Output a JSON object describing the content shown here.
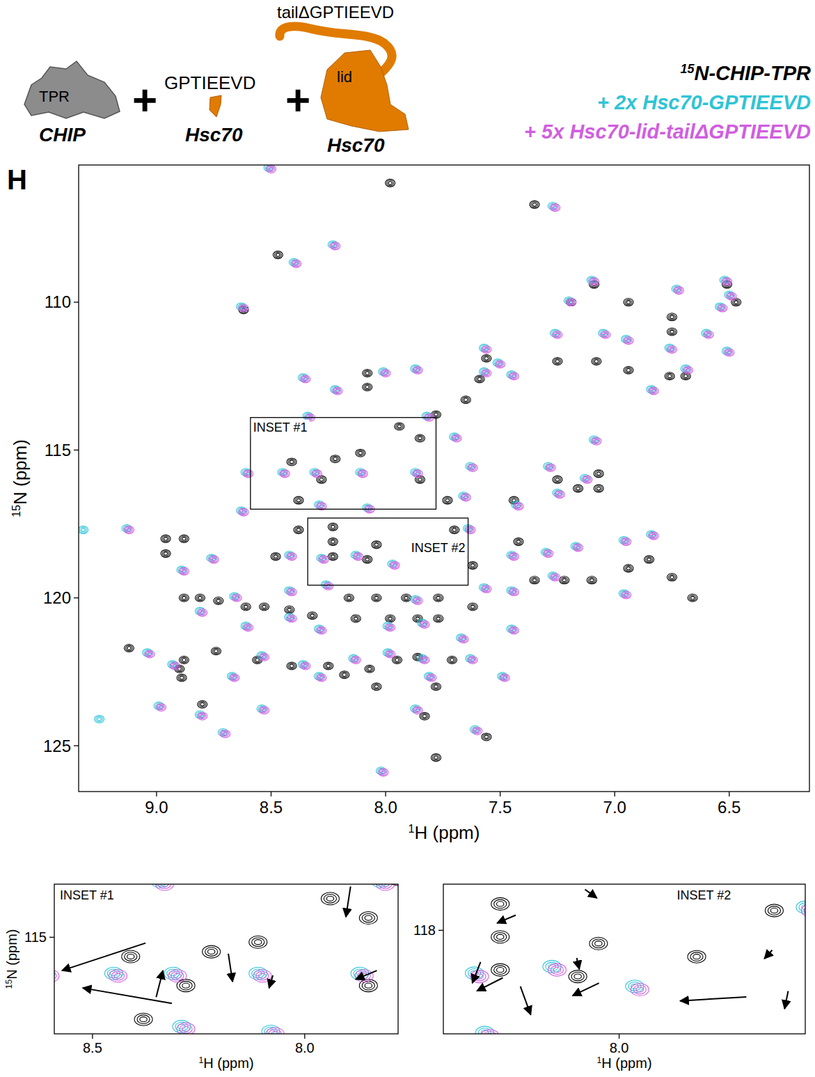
{
  "chart_data": {
    "type": "scatter",
    "panel_label": "H",
    "x_label": "1H (ppm)",
    "y_label": "15N (ppm)",
    "xlim": [
      9.34,
      6.15
    ],
    "ylim": [
      105.36,
      126.55
    ],
    "xticks": [
      {
        "value": 9,
        "label": "9.0"
      },
      {
        "value": 8.5,
        "label": "8.5"
      },
      {
        "value": 8,
        "label": "8.0"
      },
      {
        "value": 7.5,
        "label": "7.5"
      },
      {
        "value": 7,
        "label": "7.0"
      },
      {
        "value": 6.5,
        "label": "6.5"
      }
    ],
    "yticks": [
      110,
      115,
      120,
      125
    ],
    "legend": "top-right",
    "series": [
      {
        "name": "15N-CHIP-TPR",
        "color": "#000000",
        "marker": "contour",
        "x": [
          7.98,
          7.35,
          8.47,
          8.62,
          8.08,
          8.08,
          7.65,
          7.94,
          7.78,
          7.85,
          8.41,
          8.22,
          8.28,
          8.11,
          7.85,
          8.38,
          7.73,
          7.44,
          7.25,
          7.16,
          7.07,
          7.07,
          8.23,
          8.38,
          8.96,
          8.88,
          8.23,
          8.04,
          8.48,
          8.23,
          8.08,
          7.85,
          8.96,
          7.62,
          7.35,
          7.22,
          7.1,
          6.94,
          6.75,
          6.85,
          8.88,
          8.81,
          8.73,
          8.61,
          8.53,
          8.42,
          8.32,
          8.13,
          8.04,
          7.91,
          7.77,
          7.62,
          7.98,
          7.86,
          7.77,
          8.16,
          9.12,
          8.88,
          8.74,
          8.56,
          8.41,
          8.25,
          8.07,
          7.95,
          7.86,
          7.71,
          8.18,
          8.04,
          7.78,
          8.9,
          8.89,
          8.8,
          7.78,
          7.56,
          7.83,
          6.66,
          7.42,
          7.7,
          7.09,
          6.94,
          6.75,
          6.75,
          6.94,
          6.76,
          6.69,
          7.08,
          7.25,
          6.47,
          6.51,
          7.56,
          7.59,
          7.19
        ],
        "values": [
          105.97,
          106.7,
          108.4,
          110.26,
          112.4,
          112.87,
          113.3,
          114.2,
          113.8,
          114.6,
          115.4,
          115.3,
          116.0,
          115.1,
          116.0,
          116.7,
          116.7,
          116.7,
          116.0,
          116.3,
          116.3,
          115.8,
          117.6,
          117.7,
          118.0,
          118.0,
          118.1,
          118.2,
          118.6,
          118.6,
          118.7,
          118.4,
          118.5,
          118.9,
          119.4,
          119.4,
          119.4,
          119.0,
          119.3,
          118.7,
          120.0,
          120.0,
          120.1,
          120.3,
          120.3,
          120.4,
          120.6,
          120.7,
          120.0,
          120.0,
          120.0,
          120.3,
          120.7,
          120.7,
          120.7,
          120.0,
          121.7,
          122.1,
          121.8,
          122.1,
          122.3,
          122.3,
          122.4,
          122.1,
          122.0,
          122.1,
          122.6,
          123.0,
          123.0,
          122.4,
          122.7,
          123.6,
          125.4,
          124.7,
          124.0,
          120.0,
          118.1,
          117.7,
          109.4,
          110.0,
          110.5,
          111.0,
          112.3,
          112.5,
          112.5,
          112.0,
          112.0,
          110.0,
          109.4,
          111.9,
          112.6,
          110.0
        ]
      },
      {
        "name": "+ 2x Hsc70-GPTIEEVD",
        "color": "#2ec4d6",
        "marker": "contour",
        "x": [
          8.51,
          7.27,
          8.4,
          8.23,
          8.63,
          8.36,
          8.34,
          8.22,
          8.01,
          7.87,
          7.45,
          7.57,
          7.82,
          7.7,
          7.09,
          8.61,
          8.45,
          8.31,
          8.11,
          7.87,
          7.63,
          7.29,
          7.25,
          7.13,
          7.66,
          7.43,
          8.63,
          8.29,
          8.08,
          7.64,
          8.42,
          8.28,
          8.13,
          7.97,
          7.45,
          7.3,
          7.17,
          6.96,
          6.84,
          9.13,
          8.89,
          8.76,
          8.66,
          8.42,
          8.26,
          7.87,
          7.57,
          7.45,
          7.27,
          6.96,
          8.81,
          8.61,
          8.42,
          8.29,
          7.99,
          7.84,
          7.67,
          7.45,
          9.04,
          8.93,
          8.54,
          8.36,
          8.14,
          7.99,
          7.84,
          7.63,
          8.67,
          8.29,
          7.81,
          7.49,
          8.99,
          8.54,
          8.81,
          7.87,
          7.61,
          8.71,
          8.02,
          7.2,
          7.1,
          6.95,
          6.76,
          6.52,
          6.54,
          6.5,
          6.73,
          7.26,
          7.05,
          6.84,
          6.69,
          6.51,
          7.57,
          7.51,
          6.6,
          9.25,
          9.32
        ],
        "values": [
          105.45,
          106.75,
          108.65,
          108.05,
          110.15,
          112.55,
          113.85,
          112.95,
          112.35,
          112.25,
          112.45,
          112.35,
          113.85,
          114.55,
          114.65,
          115.75,
          115.75,
          115.75,
          115.75,
          115.75,
          115.55,
          115.55,
          116.45,
          115.95,
          116.55,
          116.85,
          117.05,
          116.85,
          116.95,
          117.65,
          118.55,
          118.65,
          118.55,
          118.85,
          118.55,
          118.45,
          118.25,
          118.05,
          117.85,
          117.65,
          119.05,
          118.65,
          119.95,
          119.75,
          119.55,
          120.05,
          119.65,
          119.75,
          119.25,
          119.85,
          120.45,
          120.95,
          120.65,
          121.05,
          120.95,
          120.85,
          121.35,
          121.05,
          121.85,
          122.25,
          121.95,
          122.25,
          122.05,
          121.85,
          122.05,
          122.05,
          122.65,
          122.65,
          122.65,
          122.65,
          123.65,
          123.75,
          123.95,
          123.75,
          124.45,
          124.55,
          125.85,
          109.95,
          109.25,
          111.25,
          111.55,
          109.25,
          110.15,
          109.75,
          109.55,
          111.05,
          111.05,
          112.95,
          112.25,
          111.65,
          111.55,
          112.05,
          111.05,
          124.1,
          117.7
        ]
      },
      {
        "name": "+ 5x Hsc70-lid-tailΔGPTIEEVD",
        "color": "#d05ee0",
        "marker": "contour",
        "x": [
          8.5,
          7.26,
          8.39,
          8.22,
          8.62,
          8.35,
          8.33,
          8.21,
          8.0,
          7.86,
          7.44,
          7.56,
          7.81,
          7.69,
          7.08,
          8.6,
          8.44,
          8.3,
          8.1,
          7.86,
          7.62,
          7.28,
          7.24,
          7.12,
          7.65,
          7.42,
          8.62,
          8.28,
          8.07,
          7.63,
          8.41,
          8.27,
          8.12,
          7.96,
          7.44,
          7.29,
          7.16,
          6.95,
          6.83,
          9.12,
          8.88,
          8.75,
          8.65,
          8.41,
          8.25,
          7.86,
          7.56,
          7.44,
          7.26,
          6.95,
          8.8,
          8.6,
          8.41,
          8.28,
          7.98,
          7.83,
          7.66,
          7.44,
          9.03,
          8.92,
          8.53,
          8.35,
          8.13,
          7.98,
          7.83,
          7.62,
          8.66,
          8.28,
          7.8,
          7.48,
          8.98,
          8.53,
          8.8,
          7.86,
          7.6,
          8.7,
          8.01,
          7.19,
          7.09,
          6.94,
          6.75,
          6.51,
          6.53,
          6.49,
          6.72,
          7.25,
          7.04,
          6.83,
          6.68,
          6.5,
          7.56,
          7.5,
          6.59
        ],
        "values": [
          105.5,
          106.8,
          108.7,
          108.1,
          110.2,
          112.6,
          113.9,
          113.0,
          112.4,
          112.3,
          112.5,
          112.4,
          113.9,
          114.6,
          114.7,
          115.8,
          115.8,
          115.8,
          115.8,
          115.8,
          115.6,
          115.6,
          116.5,
          116.0,
          116.6,
          116.9,
          117.1,
          116.9,
          117.0,
          117.7,
          118.6,
          118.7,
          118.6,
          118.9,
          118.6,
          118.5,
          118.3,
          118.1,
          117.9,
          117.7,
          119.1,
          118.7,
          120.0,
          119.8,
          119.6,
          120.1,
          119.7,
          119.8,
          119.3,
          119.9,
          120.5,
          121.0,
          120.7,
          121.1,
          121.0,
          120.9,
          121.4,
          121.1,
          121.9,
          122.3,
          122.0,
          122.3,
          122.1,
          121.9,
          122.1,
          122.1,
          122.7,
          122.7,
          122.7,
          122.7,
          123.7,
          123.8,
          124.0,
          123.8,
          124.5,
          124.6,
          125.9,
          110.0,
          109.3,
          111.3,
          111.6,
          109.3,
          110.2,
          109.8,
          109.6,
          111.1,
          111.1,
          113.0,
          112.3,
          111.7,
          111.6,
          112.1,
          111.1
        ]
      }
    ],
    "insets": [
      {
        "label": "INSET #1",
        "xlim": [
          8.59,
          7.78
        ],
        "ylim": [
          113.9,
          117.0
        ],
        "xticks": [
          {
            "value": 8.5,
            "label": "8.5"
          },
          {
            "value": 8,
            "label": "8.0"
          }
        ],
        "yticks": [
          115
        ],
        "x_label": "1H (ppm)",
        "y_label": "15N (ppm)",
        "arrows": [
          [
            8.375,
            115.12,
            8.572,
            115.69
          ],
          [
            8.313,
            116.37,
            8.523,
            116.05
          ],
          [
            8.35,
            116.24,
            8.334,
            115.69
          ],
          [
            8.18,
            115.34,
            8.17,
            115.92
          ],
          [
            8.075,
            115.79,
            8.084,
            116.05
          ],
          [
            7.892,
            113.95,
            7.903,
            114.58
          ],
          [
            7.83,
            115.69,
            7.88,
            115.87
          ]
        ]
      },
      {
        "label": "INSET #2",
        "xlim": [
          8.34,
          7.64
        ],
        "ylim": [
          117.3,
          119.57
        ],
        "xticks": [
          {
            "value": 8,
            "label": "8.0"
          }
        ],
        "yticks": [
          118
        ],
        "x_label": "1H (ppm)",
        "arrows": [
          [
            8.2,
            117.77,
            8.236,
            117.89
          ],
          [
            8.066,
            117.38,
            8.043,
            117.51
          ],
          [
            7.704,
            118.3,
            7.719,
            118.43
          ],
          [
            8.268,
            118.48,
            8.284,
            118.8
          ],
          [
            8.225,
            118.72,
            8.275,
            118.92
          ],
          [
            8.191,
            118.85,
            8.171,
            119.28
          ],
          [
            8.082,
            118.42,
            8.077,
            118.59
          ],
          [
            8.039,
            118.8,
            8.09,
            118.99
          ],
          [
            7.754,
            119.01,
            7.882,
            119.07
          ],
          [
            7.673,
            118.92,
            7.68,
            119.19
          ]
        ]
      }
    ],
    "cartoon": {
      "tpr": "TPR",
      "chip": "CHIP",
      "plus": "+",
      "peptide": "GPTIEEVD",
      "peptide_protein": "Hsc70",
      "tail": "tailΔGPTIEEVD",
      "lid": "lid",
      "lid_protein": "Hsc70"
    }
  }
}
